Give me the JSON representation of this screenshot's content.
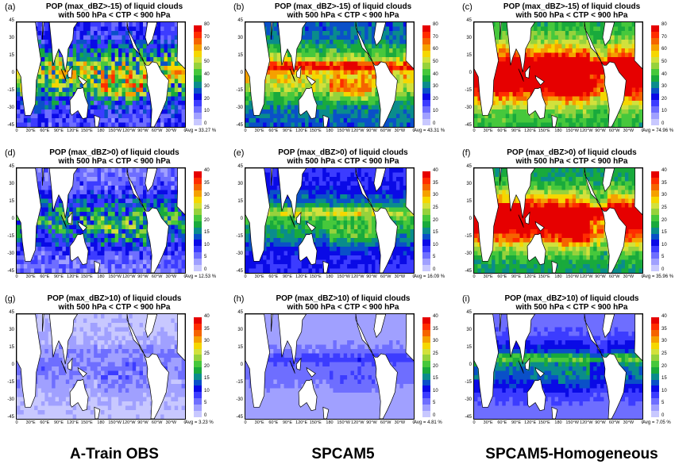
{
  "chart_data": [
    {
      "type": "heatmap",
      "panel_label": "(a)",
      "title_line1": "POP (max_dBZ>-15) of liquid clouds",
      "title_line2": "with 500 hPa < CTP < 900 hPa",
      "avg_label": "Avg = 33.27 %",
      "colorbar_ticks": [
        "0",
        "10",
        "20",
        "30",
        "40",
        "50",
        "60",
        "70",
        "80"
      ],
      "cmax": 80,
      "style": "obs",
      "level": 0.45
    },
    {
      "type": "heatmap",
      "panel_label": "(b)",
      "title_line1": "POP (max_dBZ>-15) of liquid clouds",
      "title_line2": "with 500 hPa < CTP < 900 hPa",
      "avg_label": "Avg = 43.31 %",
      "colorbar_ticks": [
        "0",
        "10",
        "20",
        "30",
        "40",
        "50",
        "60",
        "70",
        "80"
      ],
      "cmax": 80,
      "style": "model",
      "level": 0.62
    },
    {
      "type": "heatmap",
      "panel_label": "(c)",
      "title_line1": "POP (max_dBZ>-15) of liquid clouds",
      "title_line2": "with 500 hPa < CTP < 900 hPa",
      "avg_label": "Avg = 74.96 %",
      "colorbar_ticks": [
        "0",
        "10",
        "20",
        "30",
        "40",
        "50",
        "60",
        "70",
        "80"
      ],
      "cmax": 80,
      "style": "homog",
      "level": 0.95
    },
    {
      "type": "heatmap",
      "panel_label": "(d)",
      "title_line1": "POP (max_dBZ>0) of liquid clouds",
      "title_line2": "with 500 hPa < CTP < 900 hPa",
      "avg_label": "Avg = 12.53 %",
      "colorbar_ticks": [
        "0",
        "5",
        "10",
        "15",
        "20",
        "25",
        "30",
        "35",
        "40"
      ],
      "cmax": 40,
      "style": "obs",
      "level": 0.32
    },
    {
      "type": "heatmap",
      "panel_label": "(e)",
      "title_line1": "POP (max_dBZ>0) of liquid clouds",
      "title_line2": "with 500 hPa < CTP < 900 hPa",
      "avg_label": "Avg = 16.09 %",
      "colorbar_ticks": [
        "0",
        "5",
        "10",
        "15",
        "20",
        "25",
        "30",
        "35",
        "40"
      ],
      "cmax": 40,
      "style": "model",
      "level": 0.42
    },
    {
      "type": "heatmap",
      "panel_label": "(f)",
      "title_line1": "POP (max_dBZ>0) of liquid clouds",
      "title_line2": "with 500 hPa < CTP < 900 hPa",
      "avg_label": "Avg = 35.96 %",
      "colorbar_ticks": [
        "0",
        "5",
        "10",
        "15",
        "20",
        "25",
        "30",
        "35",
        "40"
      ],
      "cmax": 40,
      "style": "homog",
      "level": 0.85
    },
    {
      "type": "heatmap",
      "panel_label": "(g)",
      "title_line1": "POP (max_dBZ>10) of liquid clouds",
      "title_line2": "with 500 hPa < CTP < 900 hPa",
      "avg_label": "Avg = 3.23 %",
      "colorbar_ticks": [
        "0",
        "5",
        "10",
        "15",
        "20",
        "25",
        "30",
        "35",
        "40"
      ],
      "cmax": 40,
      "style": "obs",
      "level": 0.1
    },
    {
      "type": "heatmap",
      "panel_label": "(h)",
      "title_line1": "POP (max_dBZ>10) of liquid clouds",
      "title_line2": "with 500 hPa < CTP < 900 hPa",
      "avg_label": "Avg = 4.81 %",
      "colorbar_ticks": [
        "0",
        "5",
        "10",
        "15",
        "20",
        "25",
        "30",
        "35",
        "40"
      ],
      "cmax": 40,
      "style": "model",
      "level": 0.14
    },
    {
      "type": "heatmap",
      "panel_label": "(i)",
      "title_line1": "POP (max_dBZ>10) of liquid clouds",
      "title_line2": "with 500 hPa < CTP < 900 hPa",
      "avg_label": "Avg = 7.05 %",
      "colorbar_ticks": [
        "0",
        "5",
        "10",
        "15",
        "20",
        "25",
        "30",
        "35",
        "40"
      ],
      "cmax": 40,
      "style": "homog",
      "level": 0.3
    }
  ],
  "x_ticks": [
    "0",
    "30°E",
    "60°E",
    "90°E",
    "120°E",
    "150°E",
    "180",
    "150°W",
    "120°W",
    "90°W",
    "60°W",
    "30°W",
    "0"
  ],
  "y_ticks": [
    "45",
    "30",
    "15",
    "0",
    "-15",
    "-30",
    "-45"
  ],
  "column_titles": [
    "A-Train OBS",
    "SPCAM5",
    "SPCAM5-Homogeneous"
  ],
  "colorbar_colors": [
    "#c8c8ff",
    "#a0a0ff",
    "#6e6eff",
    "#3c3cff",
    "#0a0ae6",
    "#0a50c8",
    "#0a8c8c",
    "#19aa3c",
    "#46c83c",
    "#96d23c",
    "#d2e13c",
    "#f5d700",
    "#f5a000",
    "#f56400",
    "#ff2d00",
    "#e60000"
  ]
}
